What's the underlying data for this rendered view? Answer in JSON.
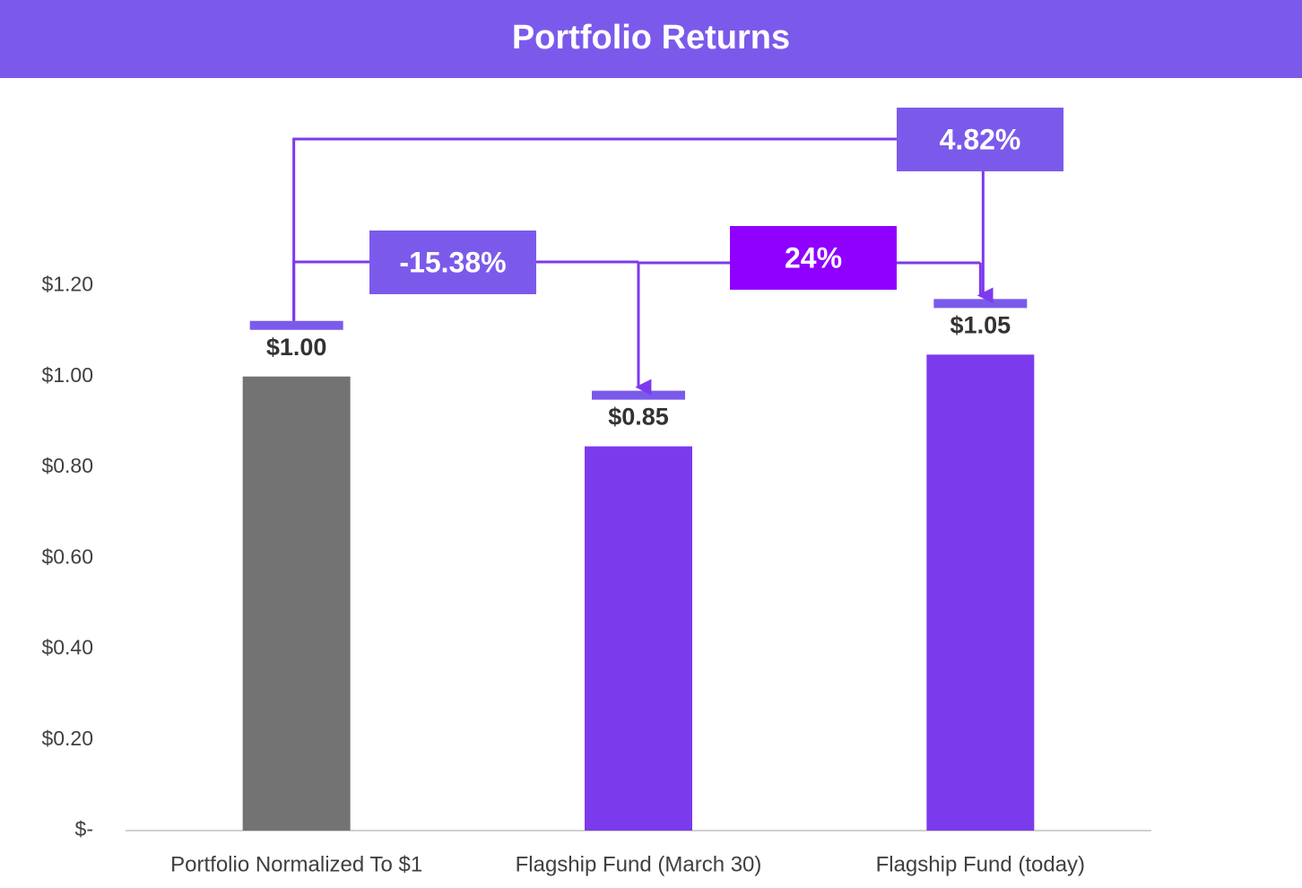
{
  "chart_data": {
    "type": "bar",
    "title": "Portfolio Returns",
    "categories": [
      "Portfolio Normalized To $1",
      "Flagship Fund (March 30)",
      "Flagship Fund (today)"
    ],
    "values": [
      1,
      0.8462,
      1.0482
    ],
    "value_labels": [
      "$1.00",
      "$0.85",
      "$1.05"
    ],
    "colors": [
      "#737373",
      "#7c3aed",
      "#7c3aed"
    ],
    "ylim": [
      0,
      1.6
    ],
    "yticks": [
      {
        "value": 0,
        "label": "$-"
      },
      {
        "value": 0.2,
        "label": "$0.20"
      },
      {
        "value": 0.4,
        "label": "$0.40"
      },
      {
        "value": 0.6,
        "label": "$0.60"
      },
      {
        "value": 0.8,
        "label": "$0.80"
      },
      {
        "value": 1,
        "label": "$1.00"
      },
      {
        "value": 1.2,
        "label": "$1.20"
      }
    ],
    "grid": false,
    "annotations": [
      "-15.38%",
      "24%",
      "4.82%"
    ]
  }
}
